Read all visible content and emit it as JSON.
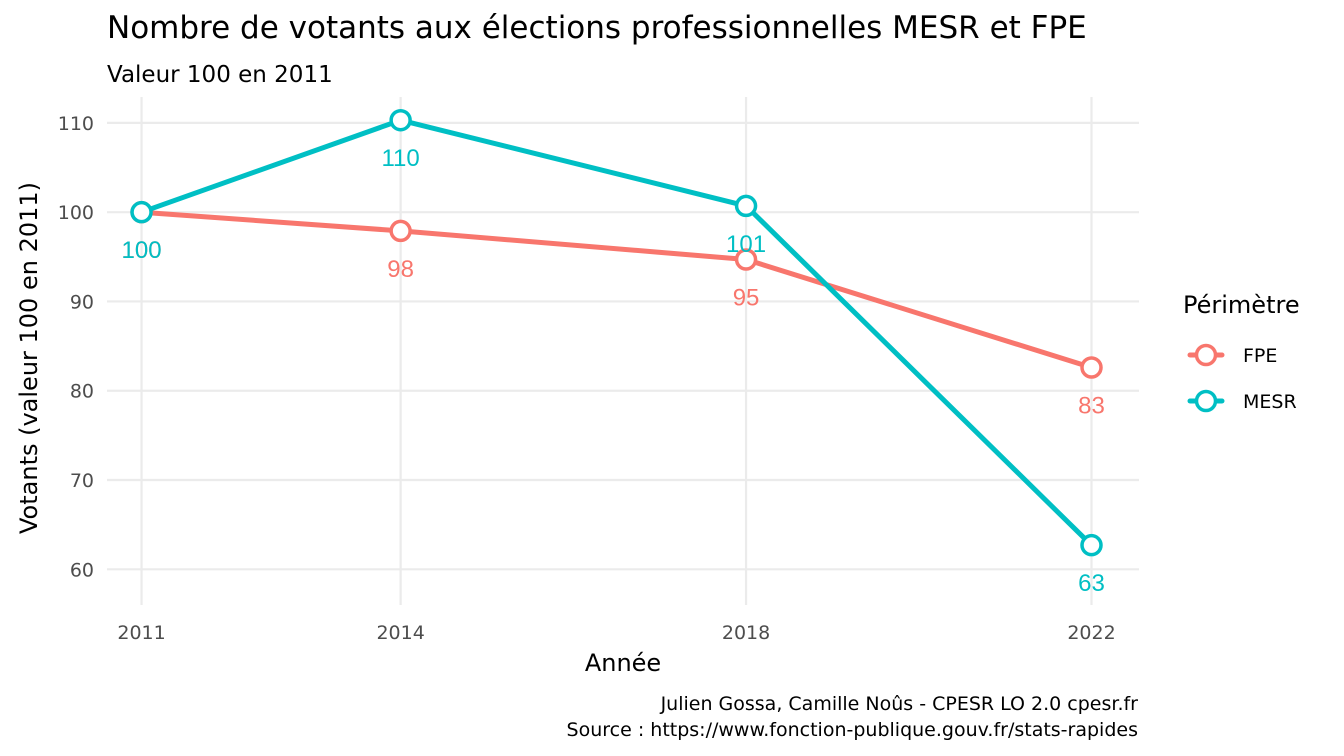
{
  "chart_data": {
    "type": "line",
    "title": "Nombre de votants aux élections professionnelles MESR et FPE",
    "subtitle": "Valeur 100 en 2011",
    "xlabel": "Année",
    "ylabel": "Votants (valeur 100 en 2011)",
    "x": [
      2011,
      2014,
      2018,
      2022
    ],
    "x_ticks": [
      "2011",
      "2014",
      "2018",
      "2022"
    ],
    "y_ticks": [
      "60",
      "70",
      "80",
      "90",
      "100",
      "110"
    ],
    "xlim": [
      2010.6,
      2022.55
    ],
    "ylim": [
      56,
      112.9
    ],
    "grid": true,
    "legend": {
      "title": "Périmètre",
      "position": "right"
    },
    "series": [
      {
        "name": "FPE",
        "color": "#f8766d",
        "values": [
          100,
          97.9,
          94.7,
          82.6
        ],
        "labels": [
          "100",
          "98",
          "95",
          "83"
        ]
      },
      {
        "name": "MESR",
        "color": "#00bfc4",
        "values": [
          100,
          110.3,
          100.7,
          62.7
        ],
        "labels": [
          "100",
          "110",
          "101",
          "63"
        ]
      }
    ],
    "caption": [
      "Julien Gossa, Camille Noûs - CPESR LO 2.0 cpesr.fr",
      "Source : https://www.fonction-publique.gouv.fr/stats-rapides"
    ]
  }
}
